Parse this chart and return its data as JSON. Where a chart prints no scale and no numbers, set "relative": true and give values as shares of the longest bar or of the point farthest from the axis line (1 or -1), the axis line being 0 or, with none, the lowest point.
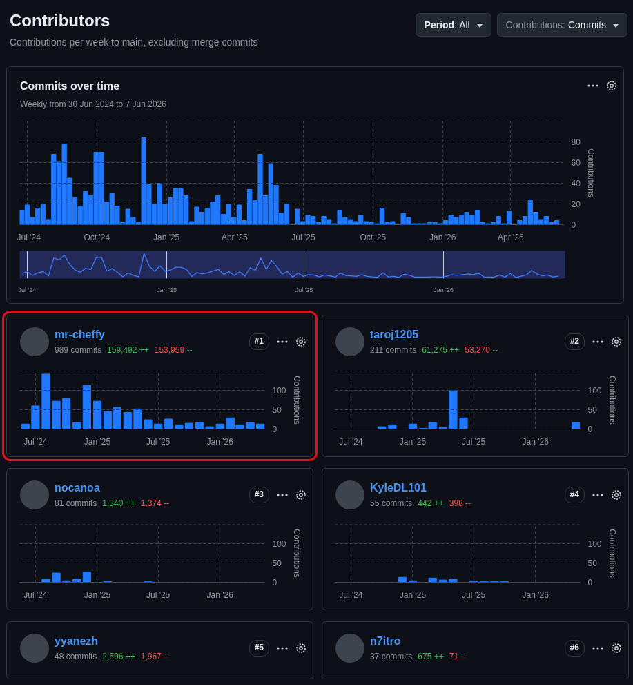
{
  "chart_data": [
    {
      "type": "other",
      "title": "Contributors",
      "subtitle": "Contributions per week to main, excluding merge commits",
      "annotations": [
        "Period: All",
        "Contributions: Commits"
      ]
    },
    {
      "type": "bar",
      "title": "Commits over time",
      "subtitle": "Weekly from 30 Jun 2024 to 7 Jun 2026",
      "ylabel": "Contributions",
      "color": "#1f78ff",
      "grid": true,
      "x": [
        "2024-06-24",
        "2024-07-01",
        "2024-07-08",
        "2024-07-15",
        "2024-07-22",
        "2024-07-29",
        "2024-08-05",
        "2024-08-12",
        "2024-08-19",
        "2024-08-26",
        "2024-09-02",
        "2024-09-09",
        "2024-09-16",
        "2024-09-23",
        "2024-09-30",
        "2024-10-07",
        "2024-10-14",
        "2024-10-21",
        "2024-10-28",
        "2024-11-04",
        "2024-11-11",
        "2024-11-18",
        "2024-11-25",
        "2024-12-02",
        "2024-12-09",
        "2024-12-16",
        "2024-12-23",
        "2024-12-30",
        "2025-01-06",
        "2025-01-13",
        "2025-01-20",
        "2025-01-27",
        "2025-02-03",
        "2025-02-10",
        "2025-02-17",
        "2025-02-24",
        "2025-03-03",
        "2025-03-10",
        "2025-03-17",
        "2025-03-24",
        "2025-03-31",
        "2025-04-07",
        "2025-04-14",
        "2025-04-21",
        "2025-04-28",
        "2025-05-05",
        "2025-05-12",
        "2025-05-19",
        "2025-05-26",
        "2025-06-02",
        "2025-06-09",
        "2025-06-16",
        "2025-06-23",
        "2025-06-30",
        "2025-07-07",
        "2025-07-14",
        "2025-07-21",
        "2025-07-28",
        "2025-08-04",
        "2025-08-11",
        "2025-08-18",
        "2025-08-25",
        "2025-09-01",
        "2025-09-08",
        "2025-09-15",
        "2025-09-22",
        "2025-09-29",
        "2025-10-06",
        "2025-10-13",
        "2025-10-20",
        "2025-10-27",
        "2025-11-03",
        "2025-11-10",
        "2025-11-17",
        "2025-11-24",
        "2025-12-01",
        "2025-12-08",
        "2025-12-15",
        "2025-12-22",
        "2025-12-29",
        "2026-01-05",
        "2026-01-12",
        "2026-01-19",
        "2026-01-26",
        "2026-02-02",
        "2026-02-09",
        "2026-02-16",
        "2026-02-23",
        "2026-03-02",
        "2026-03-09",
        "2026-03-16",
        "2026-03-23",
        "2026-03-30",
        "2026-04-06",
        "2026-04-13",
        "2026-04-20",
        "2026-04-27",
        "2026-05-04",
        "2026-05-11",
        "2026-05-18",
        "2026-05-25",
        "2026-06-01"
      ],
      "values": [
        14,
        19,
        7,
        16,
        20,
        5,
        68,
        61,
        78,
        45,
        26,
        18,
        32,
        28,
        70,
        70,
        22,
        30,
        18,
        2,
        15,
        7,
        2,
        84,
        39,
        20,
        40,
        20,
        26,
        35,
        35,
        28,
        3,
        17,
        12,
        16,
        22,
        28,
        10,
        20,
        7,
        19,
        4,
        34,
        24,
        68,
        28,
        59,
        38,
        11,
        20,
        0,
        15,
        3,
        9,
        8,
        2,
        8,
        5,
        1,
        14,
        7,
        5,
        3,
        9,
        3,
        2,
        1,
        16,
        2,
        3,
        0,
        11,
        7,
        1,
        1,
        1,
        2,
        2,
        1,
        4,
        9,
        7,
        9,
        12,
        9,
        14,
        2,
        1,
        2,
        8,
        1,
        13,
        0,
        4,
        8,
        24,
        12,
        5,
        8,
        2,
        4
      ],
      "xlim": [
        "2024-06-21",
        "2026-06-10"
      ],
      "xticks": [
        {
          "value": "2024-07-01",
          "label": "Jul '24"
        },
        {
          "value": "2024-10-01",
          "label": "Oct '24"
        },
        {
          "value": "2025-01-01",
          "label": "Jan '25"
        },
        {
          "value": "2025-04-01",
          "label": "Apr '25"
        },
        {
          "value": "2025-07-01",
          "label": "Jul '25"
        },
        {
          "value": "2025-10-01",
          "label": "Oct '25"
        },
        {
          "value": "2026-01-01",
          "label": "Jan '26"
        },
        {
          "value": "2026-04-01",
          "label": "Apr '26"
        }
      ],
      "ylim": [
        0,
        100
      ],
      "yticks": [
        0,
        20,
        40,
        60,
        80
      ]
    },
    {
      "type": "line",
      "relative": true,
      "color": "#3d7bff",
      "grid": "x",
      "x": [
        "2024-06-24",
        "2024-07-01",
        "2024-07-08",
        "2024-07-15",
        "2024-07-22",
        "2024-07-29",
        "2024-08-05",
        "2024-08-12",
        "2024-08-19",
        "2024-08-26",
        "2024-09-02",
        "2024-09-09",
        "2024-09-16",
        "2024-09-23",
        "2024-09-30",
        "2024-10-07",
        "2024-10-14",
        "2024-10-21",
        "2024-10-28",
        "2024-11-04",
        "2024-11-11",
        "2024-11-18",
        "2024-11-25",
        "2024-12-02",
        "2024-12-09",
        "2024-12-16",
        "2024-12-23",
        "2024-12-30",
        "2025-01-06",
        "2025-01-13",
        "2025-01-20",
        "2025-01-27",
        "2025-02-03",
        "2025-02-10",
        "2025-02-17",
        "2025-02-24",
        "2025-03-03",
        "2025-03-10",
        "2025-03-17",
        "2025-03-24",
        "2025-03-31",
        "2025-04-07",
        "2025-04-14",
        "2025-04-21",
        "2025-04-28",
        "2025-05-05",
        "2025-05-12",
        "2025-05-19",
        "2025-05-26",
        "2025-06-02",
        "2025-06-09",
        "2025-06-16",
        "2025-06-23",
        "2025-06-30",
        "2025-07-07",
        "2025-07-14",
        "2025-07-21",
        "2025-07-28",
        "2025-08-04",
        "2025-08-11",
        "2025-08-18",
        "2025-08-25",
        "2025-09-01",
        "2025-09-08",
        "2025-09-15",
        "2025-09-22",
        "2025-09-29",
        "2025-10-06",
        "2025-10-13",
        "2025-10-20",
        "2025-10-27",
        "2025-11-03",
        "2025-11-10",
        "2025-11-17",
        "2025-11-24",
        "2025-12-01",
        "2025-12-08",
        "2025-12-15",
        "2025-12-22",
        "2025-12-29",
        "2026-01-05",
        "2026-01-12",
        "2026-01-19",
        "2026-01-26",
        "2026-02-02",
        "2026-02-09",
        "2026-02-16",
        "2026-02-23",
        "2026-03-02",
        "2026-03-09",
        "2026-03-16",
        "2026-03-23",
        "2026-03-30",
        "2026-04-06",
        "2026-04-13",
        "2026-04-20",
        "2026-04-27",
        "2026-05-04",
        "2026-05-11",
        "2026-05-18",
        "2026-05-25",
        "2026-06-01"
      ],
      "values": [
        0.17,
        0.23,
        0.08,
        0.19,
        0.24,
        0.06,
        0.81,
        0.73,
        0.93,
        0.54,
        0.31,
        0.21,
        0.38,
        0.33,
        0.83,
        0.83,
        0.26,
        0.36,
        0.21,
        0.02,
        0.18,
        0.08,
        0.02,
        1,
        0.46,
        0.24,
        0.48,
        0.24,
        0.31,
        0.42,
        0.42,
        0.33,
        0.04,
        0.2,
        0.14,
        0.19,
        0.26,
        0.33,
        0.12,
        0.24,
        0.08,
        0.23,
        0.05,
        0.4,
        0.29,
        0.81,
        0.33,
        0.7,
        0.45,
        0.13,
        0.24,
        0,
        0.18,
        0.04,
        0.11,
        0.1,
        0.02,
        0.1,
        0.06,
        0.01,
        0.17,
        0.08,
        0.06,
        0.04,
        0.11,
        0.04,
        0.02,
        0.01,
        0.19,
        0.02,
        0.04,
        0,
        0.13,
        0.08,
        0.01,
        0.01,
        0.01,
        0.02,
        0.02,
        0.01,
        0.05,
        0.11,
        0.08,
        0.11,
        0.14,
        0.11,
        0.17,
        0.02,
        0.01,
        0.02,
        0.1,
        0.01,
        0.15,
        0,
        0.05,
        0.1,
        0.29,
        0.14,
        0.06,
        0.1,
        0.02,
        0.05
      ],
      "xlim": [
        "2024-06-21",
        "2026-06-10"
      ],
      "xticks": [
        {
          "value": "2024-07-01",
          "label": "Jul '24"
        },
        {
          "value": "2025-01-01",
          "label": "Jan '25"
        },
        {
          "value": "2025-07-01",
          "label": "Jul '25"
        },
        {
          "value": "2026-01-01",
          "label": "Jan '26"
        }
      ]
    },
    {
      "type": "bar",
      "title": "mr-cheffy",
      "annotations": [
        "989 commits",
        "159,492 ++",
        "153,959 --",
        "#1"
      ],
      "ylabel": "Contributions",
      "color": "#1f78ff",
      "grid": true,
      "x": [
        "2024-06",
        "2024-07",
        "2024-08",
        "2024-09",
        "2024-10",
        "2024-11",
        "2024-12",
        "2025-01",
        "2025-02",
        "2025-03",
        "2025-04",
        "2025-05",
        "2025-06",
        "2025-07",
        "2025-08",
        "2025-09",
        "2025-10",
        "2025-11",
        "2025-12",
        "2026-01",
        "2026-02",
        "2026-03",
        "2026-04",
        "2026-05"
      ],
      "values": [
        13,
        60,
        142,
        72,
        79,
        17,
        113,
        72,
        45,
        56,
        43,
        52,
        24,
        13,
        26,
        11,
        15,
        17,
        6,
        13,
        29,
        11,
        17,
        13
      ],
      "xlim": [
        "2024-05-15",
        "2026-05-14"
      ],
      "xticks": [
        {
          "value": "2024-07",
          "label": "Jul '24"
        },
        {
          "value": "2025-01",
          "label": "Jan '25"
        },
        {
          "value": "2025-07",
          "label": "Jul '25"
        },
        {
          "value": "2026-01",
          "label": "Jan '26"
        }
      ],
      "ylim": [
        0,
        150
      ],
      "yticks": [
        0,
        50,
        100
      ]
    },
    {
      "type": "bar",
      "title": "taroj1205",
      "annotations": [
        "211 commits",
        "61,275 ++",
        "53,270 --",
        "#2"
      ],
      "ylabel": "Contributions",
      "color": "#1f78ff",
      "grid": true,
      "x": [
        "2024-06",
        "2024-07",
        "2024-08",
        "2024-09",
        "2024-10",
        "2024-11",
        "2024-12",
        "2025-01",
        "2025-02",
        "2025-03",
        "2025-04",
        "2025-05",
        "2025-06",
        "2025-07",
        "2025-08",
        "2025-09",
        "2025-10",
        "2025-11",
        "2025-12",
        "2026-01",
        "2026-02",
        "2026-03",
        "2026-04",
        "2026-05"
      ],
      "values": [
        0,
        0,
        0,
        0,
        6,
        11,
        0,
        13,
        2,
        17,
        4,
        99,
        29,
        0,
        0,
        0,
        0,
        0,
        0,
        0,
        0,
        0,
        0,
        17
      ],
      "xlim": [
        "2024-05-15",
        "2026-05-14"
      ],
      "xticks": [
        {
          "value": "2024-07",
          "label": "Jul '24"
        },
        {
          "value": "2025-01",
          "label": "Jan '25"
        },
        {
          "value": "2025-07",
          "label": "Jul '25"
        },
        {
          "value": "2026-01",
          "label": "Jan '26"
        }
      ],
      "ylim": [
        0,
        150
      ],
      "yticks": [
        0,
        50,
        100
      ]
    },
    {
      "type": "bar",
      "title": "nocanoa",
      "annotations": [
        "81 commits",
        "1,340 ++",
        "1,374 --",
        "#3"
      ],
      "ylabel": "Contributions",
      "color": "#1f78ff",
      "grid": true,
      "x": [
        "2024-06",
        "2024-07",
        "2024-08",
        "2024-09",
        "2024-10",
        "2024-11",
        "2024-12",
        "2025-01",
        "2025-02",
        "2025-03",
        "2025-04",
        "2025-05",
        "2025-06",
        "2025-07",
        "2025-08",
        "2025-09",
        "2025-10",
        "2025-11",
        "2025-12",
        "2026-01",
        "2026-02",
        "2026-03",
        "2026-04",
        "2026-05"
      ],
      "values": [
        0,
        0,
        8,
        24,
        4,
        8,
        27,
        0,
        2,
        0,
        0,
        0,
        2,
        0,
        0,
        0,
        0,
        0,
        0,
        0,
        0,
        0,
        0,
        0
      ],
      "xlim": [
        "2024-05-15",
        "2026-05-14"
      ],
      "xticks": [
        {
          "value": "2024-07",
          "label": "Jul '24"
        },
        {
          "value": "2025-01",
          "label": "Jan '25"
        },
        {
          "value": "2025-07",
          "label": "Jul '25"
        },
        {
          "value": "2026-01",
          "label": "Jan '26"
        }
      ],
      "ylim": [
        0,
        150
      ],
      "yticks": [
        0,
        50,
        100
      ]
    },
    {
      "type": "bar",
      "title": "KyleDL101",
      "annotations": [
        "55 commits",
        "442 ++",
        "398 --",
        "#4"
      ],
      "ylabel": "Contributions",
      "color": "#1f78ff",
      "grid": true,
      "x": [
        "2024-06",
        "2024-07",
        "2024-08",
        "2024-09",
        "2024-10",
        "2024-11",
        "2024-12",
        "2025-01",
        "2025-02",
        "2025-03",
        "2025-04",
        "2025-05",
        "2025-06",
        "2025-07",
        "2025-08",
        "2025-09",
        "2025-10",
        "2025-11",
        "2025-12",
        "2026-01",
        "2026-02",
        "2026-03",
        "2026-04",
        "2026-05"
      ],
      "values": [
        0,
        0,
        0,
        0,
        0,
        0,
        13,
        4,
        0,
        11,
        6,
        8,
        0,
        2,
        2,
        2,
        2,
        0,
        0,
        0,
        0,
        0,
        0,
        0
      ],
      "xlim": [
        "2024-05-15",
        "2026-05-14"
      ],
      "xticks": [
        {
          "value": "2024-07",
          "label": "Jul '24"
        },
        {
          "value": "2025-01",
          "label": "Jan '25"
        },
        {
          "value": "2025-07",
          "label": "Jul '25"
        },
        {
          "value": "2026-01",
          "label": "Jan '26"
        }
      ],
      "ylim": [
        0,
        150
      ],
      "yticks": [
        0,
        50,
        100
      ]
    },
    {
      "type": "other",
      "title": "yyanezh",
      "annotations": [
        "48 commits",
        "2,596 ++",
        "1,967 --",
        "#5"
      ]
    },
    {
      "type": "other",
      "title": "n7itro",
      "annotations": [
        "37 commits",
        "675 ++",
        "71 --",
        "#6"
      ]
    }
  ]
}
